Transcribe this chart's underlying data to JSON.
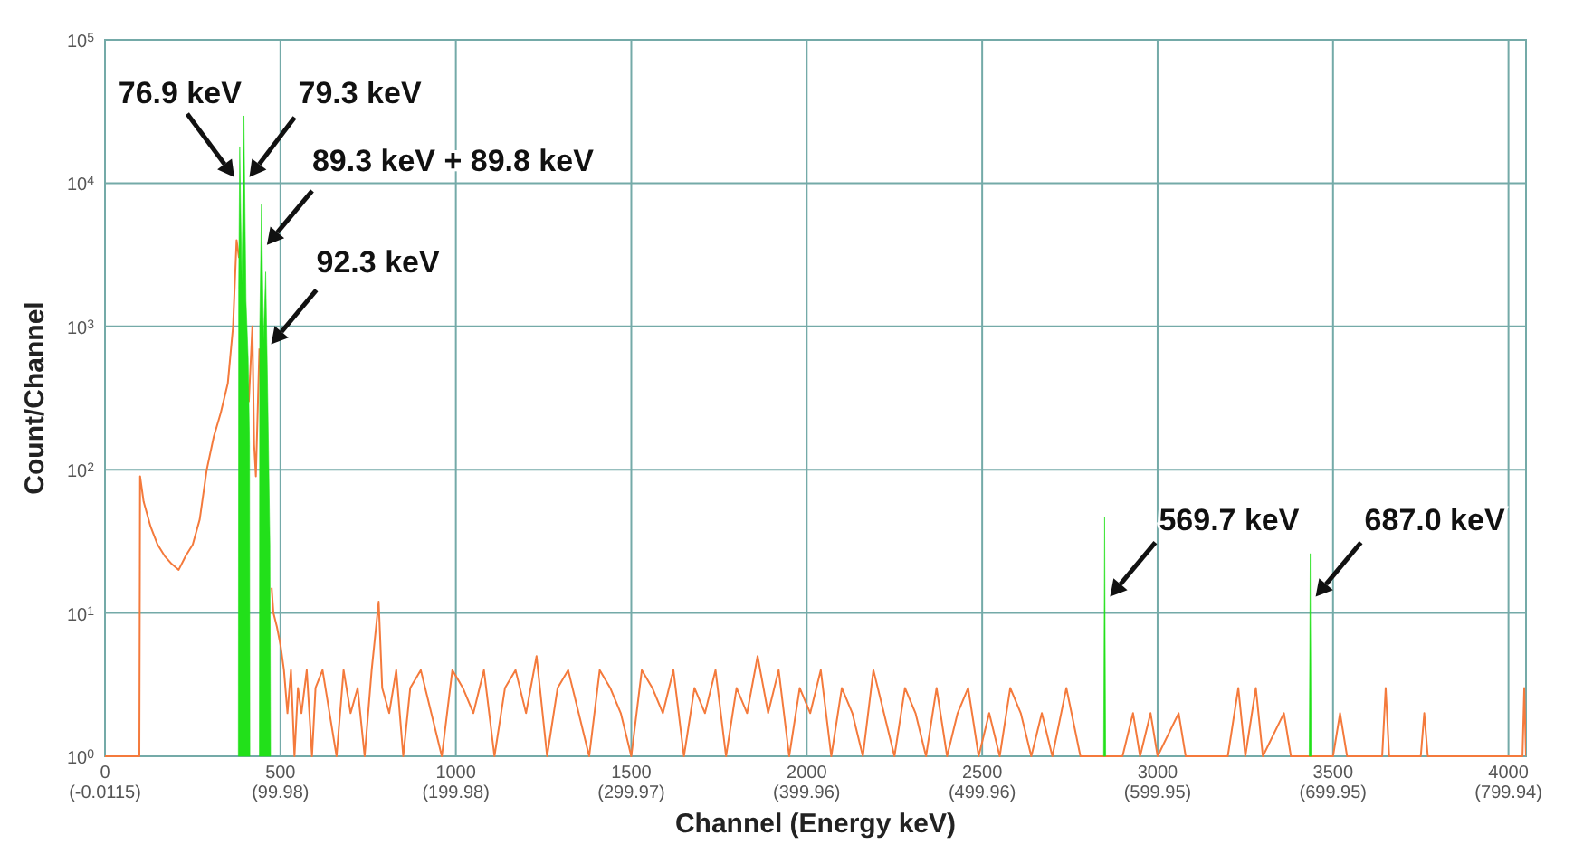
{
  "chart_data": {
    "type": "line",
    "xlabel": "Channel (Energy keV)",
    "ylabel": "Count/Channel",
    "log": "y",
    "grid": true,
    "xlim": [
      0,
      4050
    ],
    "ylim": [
      1,
      100000
    ],
    "xticks": [
      0,
      500,
      1000,
      1500,
      2000,
      2500,
      3000,
      3500,
      4000
    ],
    "x2lim": [
      -0.0115,
      809.94
    ],
    "x2ticks": [
      {
        "value": -0.0115,
        "label": "(-0.0115)"
      },
      {
        "value": 99.98,
        "label": "(99.98)"
      },
      {
        "value": 199.98,
        "label": "(199.98)"
      },
      {
        "value": 299.97,
        "label": "(299.97)"
      },
      {
        "value": 399.96,
        "label": "(399.96)"
      },
      {
        "value": 499.96,
        "label": "(499.96)"
      },
      {
        "value": 599.95,
        "label": "(599.95)"
      },
      {
        "value": 699.95,
        "label": "(699.95)"
      },
      {
        "value": 799.94,
        "label": "(799.94)"
      }
    ],
    "yticks": [
      {
        "value": 1,
        "label": "10$^{0}$"
      },
      {
        "value": 10,
        "label": "10$^{1}$"
      },
      {
        "value": 100,
        "label": "10$^{2}$"
      },
      {
        "value": 1000,
        "label": "10$^{3}$"
      },
      {
        "value": 10000,
        "label": "10$^{4}$"
      },
      {
        "value": 100000,
        "label": "10$^{5}$"
      }
    ],
    "series": [
      {
        "color": "#f47a3c",
        "x": [
          0,
          98,
          100,
          110,
          130,
          150,
          170,
          190,
          210,
          230,
          250,
          270,
          290,
          310,
          330,
          350,
          365,
          375,
          382,
          390,
          400,
          410,
          420,
          425,
          430,
          436,
          440,
          450,
          465,
          475,
          480,
          490,
          500,
          510,
          520,
          530,
          540,
          550,
          560,
          575,
          590,
          600,
          620,
          640,
          660,
          680,
          700,
          720,
          740,
          760,
          780,
          790,
          810,
          830,
          850,
          870,
          900,
          930,
          960,
          990,
          1020,
          1050,
          1080,
          1110,
          1140,
          1170,
          1200,
          1230,
          1260,
          1290,
          1320,
          1350,
          1380,
          1410,
          1440,
          1470,
          1500,
          1530,
          1560,
          1590,
          1620,
          1650,
          1680,
          1710,
          1740,
          1770,
          1800,
          1830,
          1860,
          1890,
          1920,
          1950,
          1980,
          2010,
          2040,
          2070,
          2100,
          2130,
          2160,
          2190,
          2220,
          2250,
          2280,
          2310,
          2340,
          2370,
          2400,
          2430,
          2460,
          2490,
          2520,
          2550,
          2580,
          2610,
          2640,
          2670,
          2700,
          2740,
          2780,
          2820,
          2900,
          2930,
          2950,
          2980,
          3000,
          3060,
          3080,
          3200,
          3230,
          3250,
          3280,
          3300,
          3360,
          3380,
          3500,
          3520,
          3540,
          3640,
          3650,
          3660,
          3750,
          3760,
          3770,
          4040,
          4045,
          4050
        ],
        "values": [
          1,
          1,
          90,
          60,
          40,
          30,
          25,
          22,
          20,
          25,
          30,
          45,
          100,
          170,
          250,
          400,
          1000,
          4000,
          3000,
          null,
          600,
          300,
          1000,
          150,
          90,
          300,
          700,
          null,
          null,
          15,
          10,
          8,
          6,
          4,
          2,
          4,
          1,
          3,
          2,
          4,
          1,
          3,
          4,
          2,
          1,
          4,
          2,
          3,
          1,
          4,
          12,
          3,
          2,
          4,
          1,
          3,
          4,
          2,
          1,
          4,
          3,
          2,
          4,
          1,
          3,
          4,
          2,
          5,
          1,
          3,
          4,
          2,
          1,
          4,
          3,
          2,
          1,
          4,
          3,
          2,
          4,
          1,
          3,
          2,
          4,
          1,
          3,
          2,
          5,
          2,
          4,
          1,
          3,
          2,
          4,
          1,
          3,
          2,
          1,
          4,
          2,
          1,
          3,
          2,
          1,
          3,
          1,
          2,
          3,
          1,
          2,
          1,
          3,
          2,
          1,
          2,
          1,
          3,
          1,
          1,
          1,
          2,
          1,
          2,
          1,
          2,
          1,
          1,
          3,
          1,
          3,
          1,
          2,
          1,
          1,
          2,
          1,
          1,
          3,
          1,
          1,
          2,
          1,
          1,
          3,
          1
        ]
      },
      {
        "type": "area",
        "color": "#22e01a",
        "x": [
          380,
          381,
          384,
          390,
          396,
          402,
          408,
          412,
          413,
          425,
          440,
          441,
          446,
          452,
          458,
          464,
          470,
          472,
          2000,
          2846,
          2849,
          2852,
          3000,
          3432,
          3435,
          3438
        ],
        "values": [
          1,
          1800,
          18000,
          2000,
          29500,
          1500,
          600,
          150,
          1,
          null,
          1,
          1000,
          7100,
          800,
          2400,
          300,
          30,
          1,
          null,
          1,
          47,
          1,
          null,
          1,
          26,
          1
        ]
      }
    ],
    "annotations": [
      {
        "text": "76.9 keV",
        "x": 384,
        "y": 11000
      },
      {
        "text": "79.3 keV",
        "x": 396,
        "y": 11000
      },
      {
        "text": "89.3 keV + 89.8 keV",
        "x": 446,
        "y": 3700
      },
      {
        "text": "92.3 keV",
        "x": 458,
        "y": 750
      },
      {
        "text": "569.7 keV",
        "x": 2849,
        "y": 13
      },
      {
        "text": "687.0 keV",
        "x": 3435,
        "y": 13
      }
    ]
  }
}
